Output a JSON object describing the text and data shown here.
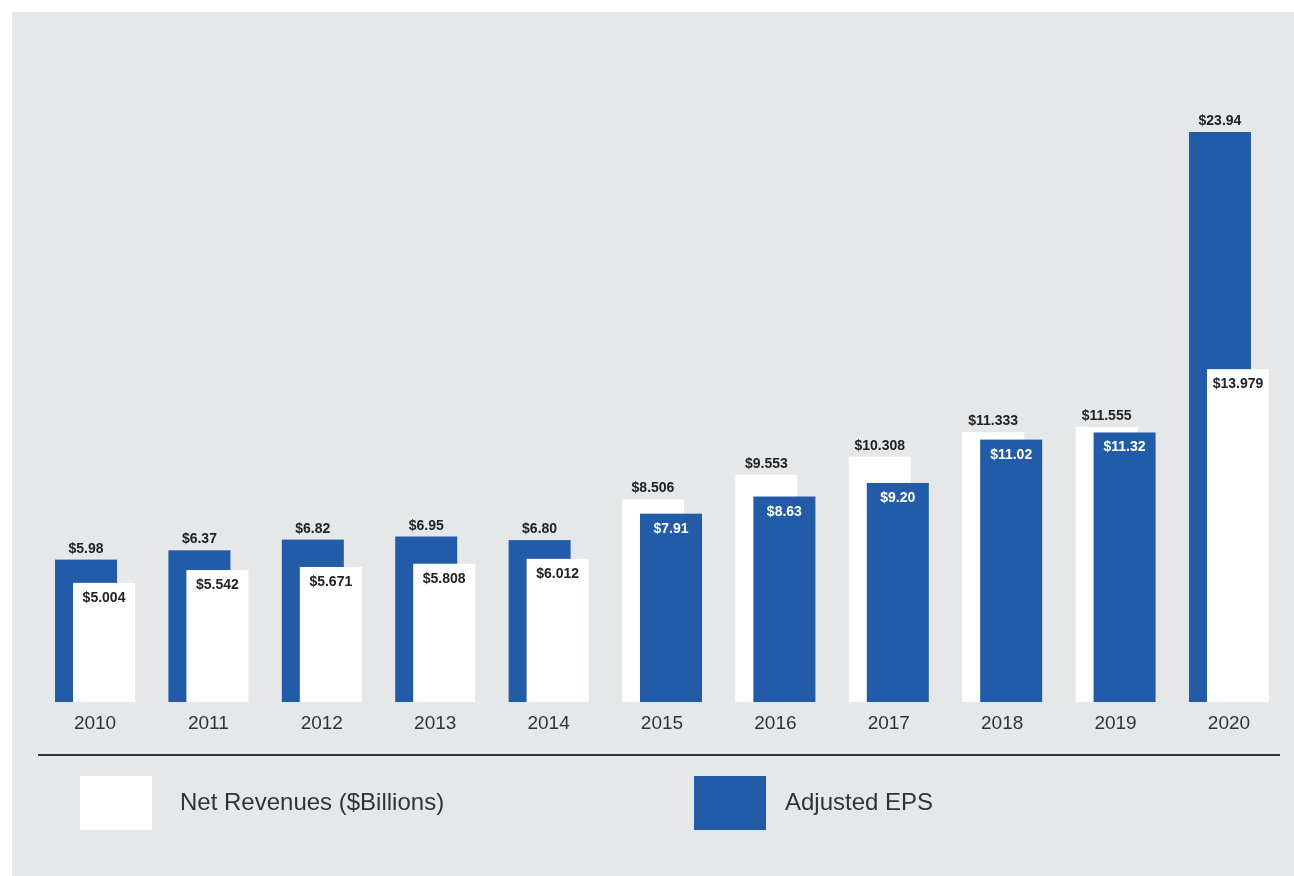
{
  "chart_data": {
    "type": "bar",
    "categories": [
      "2010",
      "2011",
      "2012",
      "2013",
      "2014",
      "2015",
      "2016",
      "2017",
      "2018",
      "2019",
      "2020"
    ],
    "series": [
      {
        "name": "Net Revenues ($Billions)",
        "color": "#ffffff",
        "values": [
          5.004,
          5.542,
          5.671,
          5.808,
          6.012,
          8.506,
          9.553,
          10.308,
          11.333,
          11.555,
          13.979
        ],
        "value_labels": [
          "$5.004",
          "$5.542",
          "$5.671",
          "$5.808",
          "$6.012",
          "$8.506",
          "$9.553",
          "$10.308",
          "$11.333",
          "$11.555",
          "$13.979"
        ]
      },
      {
        "name": "Adjusted EPS",
        "color": "#225ba8",
        "values": [
          5.98,
          6.37,
          6.82,
          6.95,
          6.8,
          7.91,
          8.63,
          9.2,
          11.02,
          11.32,
          23.94
        ],
        "value_labels": [
          "$5.98",
          "$6.37",
          "$6.82",
          "$6.95",
          "$6.80",
          "$7.91",
          "$8.63",
          "$9.20",
          "$11.02",
          "$11.32",
          "$23.94"
        ]
      }
    ],
    "legend": "bottom"
  }
}
